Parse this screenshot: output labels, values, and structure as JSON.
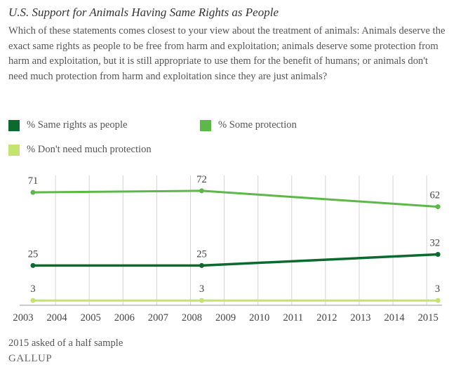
{
  "chart_data": {
    "type": "line",
    "title": "U.S. Support for Animals Having Same Rights as People",
    "subtitle": "Which of these statements comes closest to your view about the treatment of animals: Animals deserve the exact same rights as people to be free from harm and exploitation; animals deserve some protection from harm and exploitation, but it is still appropriate to use them for the benefit of humans; or animals don't need much protection from harm and exploitation since they are just animals?",
    "x": [
      2003,
      2008,
      2015
    ],
    "x_ticks": [
      "2003",
      "2004",
      "2005",
      "2006",
      "2007",
      "2008",
      "2009",
      "2010",
      "2011",
      "2012",
      "2013",
      "2014",
      "2015"
    ],
    "series": [
      {
        "name": "% Same rights as people",
        "values": [
          25,
          25,
          32
        ],
        "color": "#0b6b2e"
      },
      {
        "name": "% Some protection",
        "values": [
          71,
          72,
          62
        ],
        "color": "#5cb848"
      },
      {
        "name": "% Don't need much protection",
        "values": [
          3,
          3,
          3
        ],
        "color": "#c4e46e"
      }
    ],
    "ylim": [
      0,
      80
    ],
    "grid": "vertical",
    "legend": "top",
    "note": "2015 asked of a half sample"
  },
  "brand": "GALLUP"
}
